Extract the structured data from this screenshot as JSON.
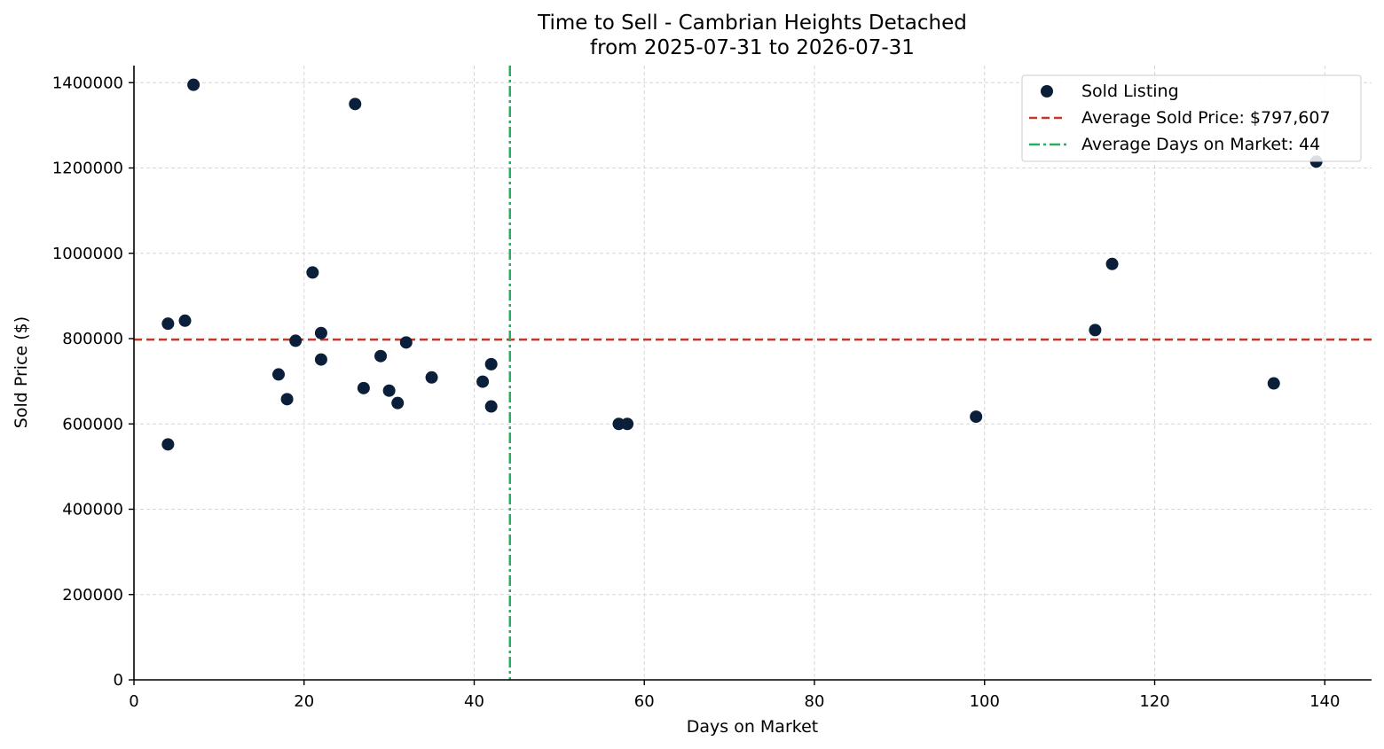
{
  "chart_data": {
    "type": "scatter",
    "title": "Time to Sell - Cambrian Heights Detached",
    "subtitle": "from 2025-07-31 to 2026-07-31",
    "xlabel": "Days on Market",
    "ylabel": "Sold Price ($)",
    "xlim": [
      0,
      145.5
    ],
    "ylim": [
      0,
      1440000
    ],
    "xticks": [
      0,
      20,
      40,
      60,
      80,
      100,
      120,
      140
    ],
    "yticks": [
      0,
      200000,
      400000,
      600000,
      800000,
      1000000,
      1200000,
      1400000
    ],
    "grid": true,
    "legend_position": "top-right",
    "colors": {
      "points": "#0b1f3a",
      "avg_price_line": "#c0392b",
      "avg_days_line": "#27ae60"
    },
    "series": [
      {
        "name": "Sold Listing",
        "points": [
          {
            "x": 4,
            "y": 835000
          },
          {
            "x": 4,
            "y": 552000
          },
          {
            "x": 6,
            "y": 842000
          },
          {
            "x": 7,
            "y": 1395000
          },
          {
            "x": 17,
            "y": 716000
          },
          {
            "x": 18,
            "y": 658000
          },
          {
            "x": 19,
            "y": 795000
          },
          {
            "x": 21,
            "y": 955000
          },
          {
            "x": 22,
            "y": 813000
          },
          {
            "x": 22,
            "y": 751000
          },
          {
            "x": 26,
            "y": 1350000
          },
          {
            "x": 27,
            "y": 684000
          },
          {
            "x": 29,
            "y": 759000
          },
          {
            "x": 30,
            "y": 678000
          },
          {
            "x": 31,
            "y": 649000
          },
          {
            "x": 32,
            "y": 791000
          },
          {
            "x": 35,
            "y": 709000
          },
          {
            "x": 41,
            "y": 699000
          },
          {
            "x": 42,
            "y": 740000
          },
          {
            "x": 42,
            "y": 641000
          },
          {
            "x": 57,
            "y": 600000
          },
          {
            "x": 58,
            "y": 600000
          },
          {
            "x": 99,
            "y": 617000
          },
          {
            "x": 113,
            "y": 820000
          },
          {
            "x": 115,
            "y": 975000
          },
          {
            "x": 134,
            "y": 695000
          },
          {
            "x": 139,
            "y": 1215000
          }
        ]
      }
    ],
    "reference_lines": [
      {
        "name": "Average Sold Price: $797,607",
        "orientation": "horizontal",
        "value": 797607,
        "style": "dashed"
      },
      {
        "name": "Average Days on Market: 44",
        "orientation": "vertical",
        "value": 44.2,
        "style": "dashdot"
      }
    ]
  }
}
